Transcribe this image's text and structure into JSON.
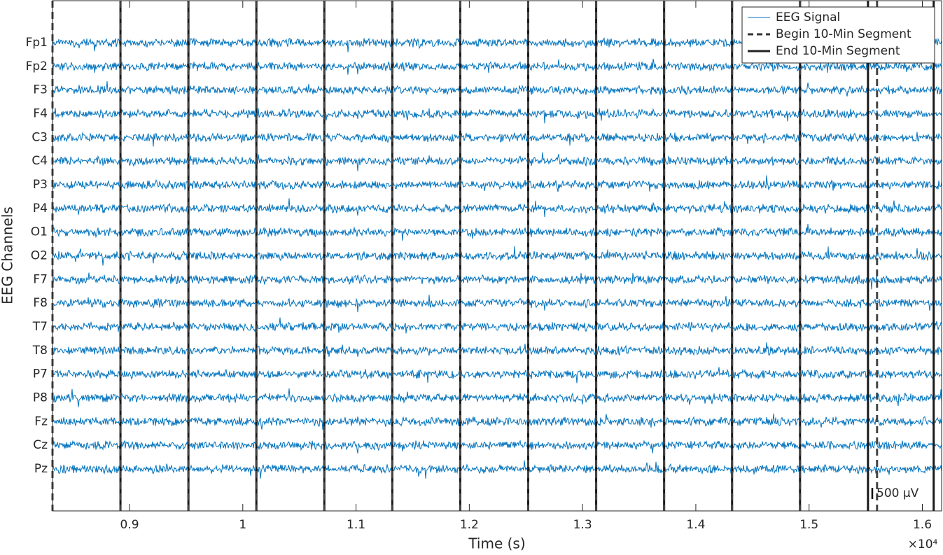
{
  "chart_data": {
    "type": "eeg",
    "xlabel": "Time (s)",
    "ylabel": "EEG Channels",
    "categories": [
      "Fp1",
      "Fp2",
      "F3",
      "F4",
      "C3",
      "C4",
      "P3",
      "P4",
      "O1",
      "O2",
      "F7",
      "F8",
      "T7",
      "T8",
      "P7",
      "P8",
      "Fz",
      "Cz",
      "Pz"
    ],
    "xlim": [
      8320,
      16170
    ],
    "xticks": [
      {
        "value": 9000,
        "label": "0.9"
      },
      {
        "value": 10000,
        "label": "1"
      },
      {
        "value": 11000,
        "label": "1.1"
      },
      {
        "value": 12000,
        "label": "1.2"
      },
      {
        "value": 13000,
        "label": "1.3"
      },
      {
        "value": 14000,
        "label": "1.4"
      },
      {
        "value": 15000,
        "label": "1.5"
      },
      {
        "value": 16000,
        "label": "1.6"
      }
    ],
    "x_exponent_label": "×10⁴",
    "segment_begins": [
      8320,
      8920,
      9520,
      10120,
      10720,
      11320,
      11920,
      12520,
      13120,
      13720,
      14320,
      14920,
      15600
    ],
    "segment_ends": [
      8920,
      9520,
      10120,
      10720,
      11320,
      11920,
      12520,
      13120,
      13720,
      14320,
      14920,
      15520,
      16100
    ],
    "signal_color": "#0072bd",
    "legend": [
      {
        "name": "EEG Signal",
        "color": "#0072bd",
        "style": "thin"
      },
      {
        "name": "Begin 10-Min Segment",
        "color": "#333333",
        "style": "dashed"
      },
      {
        "name": "End 10-Min Segment",
        "color": "#222222",
        "style": "solid"
      }
    ],
    "legend_position": "upper right",
    "scale_bar_label": "500 μV"
  }
}
